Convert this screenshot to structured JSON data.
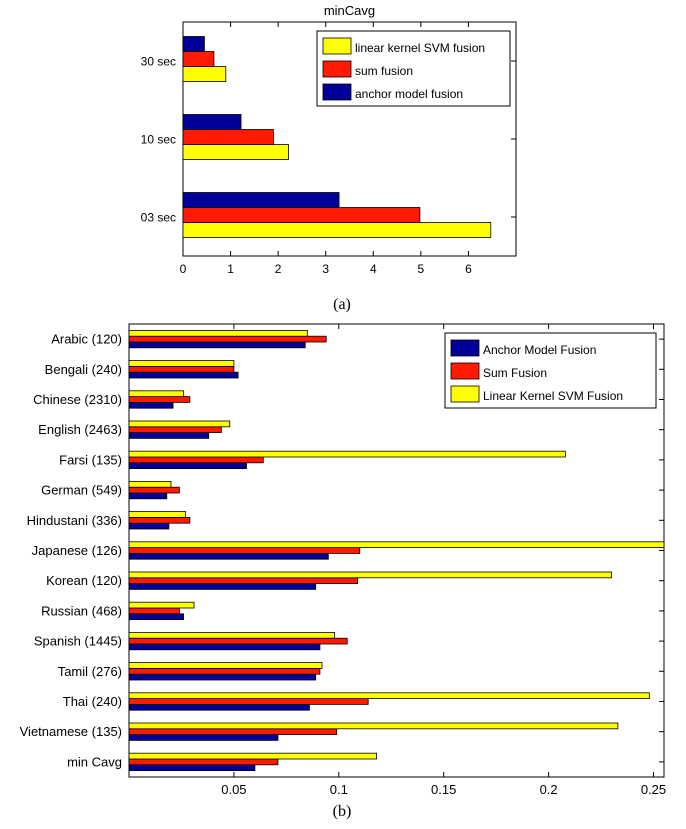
{
  "colors": {
    "anchor": "#000099",
    "sum": "#ff1a00",
    "svm": "#ffff00",
    "outline": "#000000"
  },
  "chart_data": [
    {
      "type": "bar",
      "orientation": "horizontal",
      "title": "minCavg",
      "caption": "(a)",
      "xlim": [
        0,
        7
      ],
      "xticks": [
        "0",
        "1",
        "2",
        "3",
        "4",
        "5",
        "6"
      ],
      "categories": [
        "30 sec",
        "10 sec",
        "03 sec"
      ],
      "series": [
        {
          "name": "linear kernel SVM fusion",
          "color_key": "svm",
          "values": [
            0.9,
            2.22,
            6.47
          ]
        },
        {
          "name": "sum fusion",
          "color_key": "sum",
          "values": [
            0.65,
            1.9,
            4.98
          ]
        },
        {
          "name": "anchor model fusion",
          "color_key": "anchor",
          "values": [
            0.45,
            1.22,
            3.28
          ]
        }
      ],
      "legend_position": "top-right",
      "grid": false
    },
    {
      "type": "bar",
      "orientation": "horizontal",
      "title": "",
      "caption": "(b)",
      "xlim": [
        0,
        0.255
      ],
      "xticks": [
        "0.05",
        "0.1",
        "0.15",
        "0.2",
        "0.25"
      ],
      "categories": [
        "Arabic (120)",
        "Bengali (240)",
        "Chinese (2310)",
        "English (2463)",
        "Farsi (135)",
        "German (549)",
        "Hindustani (336)",
        "Japanese (126)",
        "Korean (120)",
        "Russian (468)",
        "Spanish (1445)",
        "Tamil (276)",
        "Thai (240)",
        "Vietnamese (135)",
        "min Cavg"
      ],
      "series": [
        {
          "name": "Anchor Model Fusion",
          "color_key": "anchor",
          "values": [
            0.084,
            0.052,
            0.021,
            0.038,
            0.056,
            0.018,
            0.019,
            0.095,
            0.089,
            0.026,
            0.091,
            0.089,
            0.086,
            0.071,
            0.06
          ]
        },
        {
          "name": "Sum Fusion",
          "color_key": "sum",
          "values": [
            0.094,
            0.05,
            0.029,
            0.044,
            0.064,
            0.024,
            0.029,
            0.11,
            0.109,
            0.024,
            0.104,
            0.091,
            0.114,
            0.099,
            0.071
          ]
        },
        {
          "name": "Linear Kernel SVM Fusion",
          "color_key": "svm",
          "values": [
            0.085,
            0.05,
            0.026,
            0.048,
            0.208,
            0.02,
            0.027,
            0.255,
            0.23,
            0.031,
            0.098,
            0.092,
            0.248,
            0.233,
            0.118
          ]
        }
      ],
      "legend_position": "top-right",
      "grid": false
    }
  ]
}
